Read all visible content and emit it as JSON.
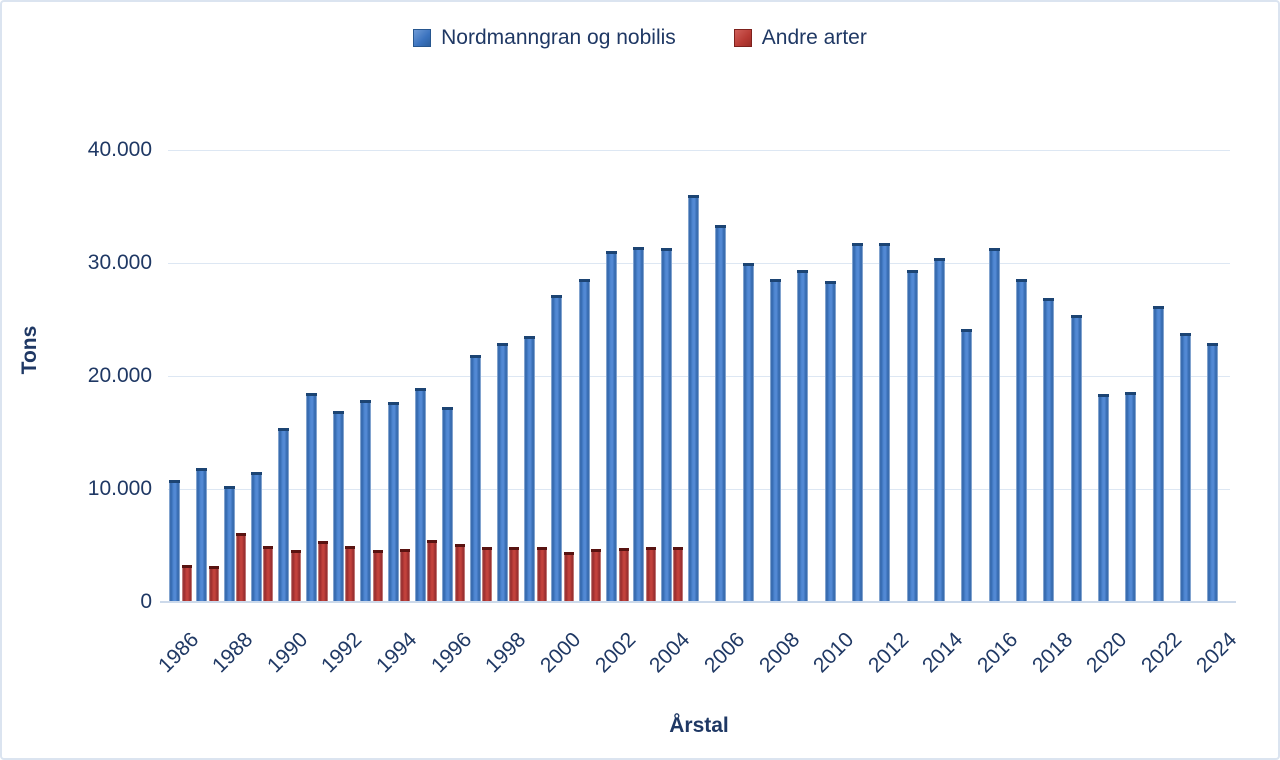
{
  "colors": {
    "blue_bar": "#4f87d2",
    "blue_bar_dark": "#1c4473",
    "red_bar": "#c2423c",
    "red_bar_dark": "#591311",
    "text": "#1f3864",
    "gridline": "#dde7f3",
    "axis_line": "#ccd9ea",
    "frame_border": "#dbe4f0",
    "background": "#ffffff"
  },
  "legend": {
    "items": [
      {
        "label": "Nordmanngran og nobilis",
        "color": "#3a72be",
        "swatch": "blue-square-icon"
      },
      {
        "label": "Andre arter",
        "color": "#b73a34",
        "swatch": "red-square-icon"
      }
    ],
    "position": "top-center"
  },
  "chart_data": {
    "type": "bar",
    "title": "",
    "xlabel": "Årstal",
    "ylabel": "Tons",
    "ylim": [
      0,
      40000
    ],
    "grid": true,
    "legend_position": "top",
    "ytick_values": [
      0,
      10000,
      20000,
      30000,
      40000
    ],
    "ytick_labels": [
      "0",
      "10.000",
      "20.000",
      "30.000",
      "40.000"
    ],
    "x": [
      1986,
      1987,
      1988,
      1989,
      1990,
      1991,
      1992,
      1993,
      1994,
      1995,
      1996,
      1997,
      1998,
      1999,
      2000,
      2001,
      2002,
      2003,
      2004,
      2005,
      2006,
      2007,
      2008,
      2009,
      2010,
      2011,
      2012,
      2013,
      2014,
      2015,
      2016,
      2017,
      2018,
      2019,
      2020,
      2021,
      2022,
      2023,
      2024
    ],
    "xtick_labels": [
      "1986",
      "1988",
      "1990",
      "1992",
      "1994",
      "1996",
      "1998",
      "2000",
      "2002",
      "2004",
      "2006",
      "2008",
      "2010",
      "2012",
      "2014",
      "2016",
      "2018",
      "2020",
      "2022",
      "2024"
    ],
    "series": [
      {
        "name": "Nordmanngran og nobilis",
        "color": "#4f87d2",
        "values": [
          10800,
          11900,
          10300,
          11500,
          15400,
          18500,
          16900,
          17900,
          17700,
          18900,
          17300,
          21900,
          22900,
          23500,
          27200,
          28600,
          31100,
          31400,
          31300,
          36000,
          33400,
          30000,
          28600,
          29400,
          28400,
          31800,
          31800,
          29400,
          30400,
          24200,
          31300,
          28600,
          26900,
          25400,
          18400,
          18600,
          26200,
          23800,
          22900
        ]
      },
      {
        "name": "Andre arter",
        "color": "#c2423c",
        "values": [
          3300,
          3200,
          6100,
          5000,
          4600,
          5400,
          5000,
          4600,
          4700,
          5500,
          5100,
          4900,
          4900,
          4900,
          4400,
          4700,
          4800,
          4900,
          4900,
          null,
          null,
          null,
          null,
          null,
          null,
          null,
          null,
          null,
          null,
          null,
          null,
          null,
          null,
          null,
          null,
          null,
          null,
          null,
          null
        ]
      }
    ]
  }
}
